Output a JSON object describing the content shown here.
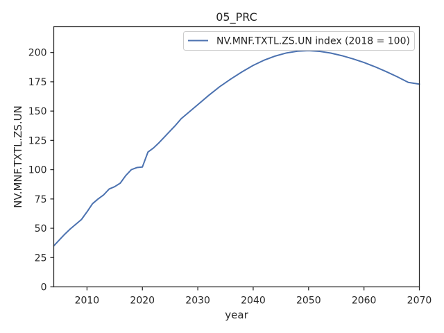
{
  "chart_data": {
    "type": "line",
    "title": "05_PRC",
    "xlabel": "year",
    "ylabel": "NV.MNF.TXTL.ZS.UN",
    "xlim": [
      2004,
      2070
    ],
    "ylim": [
      0,
      222
    ],
    "xticks": [
      2010,
      2020,
      2030,
      2040,
      2050,
      2060,
      2070
    ],
    "yticks": [
      0,
      25,
      50,
      75,
      100,
      125,
      150,
      175,
      200
    ],
    "grid": false,
    "legend_position": "top-right",
    "series": [
      {
        "name": "NV.MNF.TXTL.ZS.UN index (2018 = 100)",
        "color": "#4c72b0",
        "x": [
          2004,
          2005,
          2006,
          2007,
          2008,
          2009,
          2010,
          2011,
          2012,
          2013,
          2014,
          2015,
          2016,
          2017,
          2018,
          2019,
          2020,
          2021,
          2022,
          2023,
          2024,
          2025,
          2026,
          2027,
          2028,
          2029,
          2030,
          2032,
          2034,
          2036,
          2038,
          2040,
          2042,
          2044,
          2046,
          2048,
          2050,
          2052,
          2054,
          2056,
          2058,
          2060,
          2062,
          2064,
          2066,
          2068,
          2070
        ],
        "y": [
          35,
          40,
          45,
          49.5,
          53.5,
          57.5,
          64,
          71,
          75,
          78.5,
          83.5,
          85.5,
          88.5,
          95,
          100,
          101.8,
          102.3,
          115,
          118.5,
          123,
          128,
          133,
          138,
          143.5,
          147.5,
          151.5,
          155.5,
          163.5,
          171,
          177.5,
          183.5,
          189,
          193.5,
          197,
          199.6,
          201.1,
          201.6,
          201,
          199.5,
          197.3,
          194.6,
          191.5,
          187.8,
          183.7,
          179.3,
          174.5,
          173
        ]
      }
    ]
  }
}
